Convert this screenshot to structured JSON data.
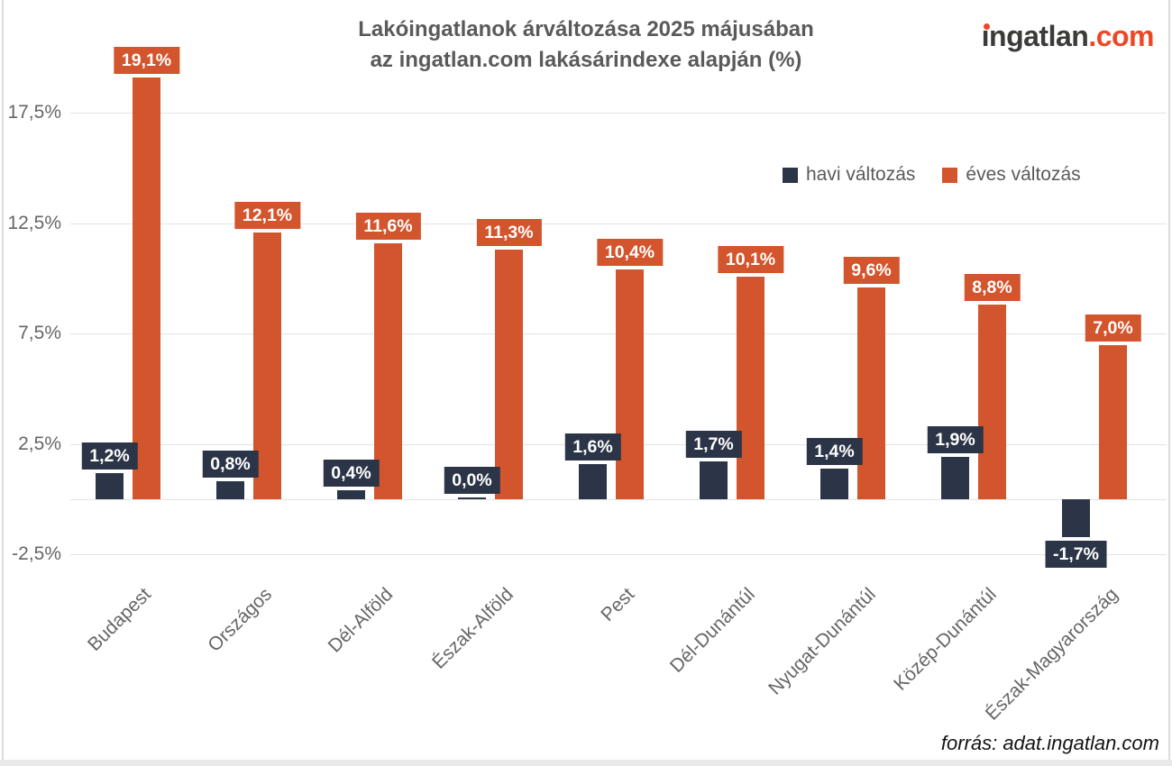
{
  "title": {
    "line1": "Lakóingatlanok árváltozása 2025 májusában",
    "line2": "az ingatlan.com lakásárindexe alapján (%)"
  },
  "logo": {
    "word": "ingatlan",
    "tld": ".com"
  },
  "legend": [
    {
      "label": "havi változás",
      "color": "#2c3547"
    },
    {
      "label": "éves változás",
      "color": "#d2552d"
    }
  ],
  "source": "forrás: adat.ingatlan.com",
  "colors": {
    "monthly": "#2c3547",
    "yearly": "#d2552d",
    "grid": "#e3e3e3",
    "axis_text": "#666666",
    "title_text": "#5a5a5a",
    "logo_dark": "#3b3b3a",
    "logo_orange": "#ee4726"
  },
  "chart_data": {
    "type": "bar",
    "title": "Lakóingatlanok árváltozása 2025 májusában az ingatlan.com lakásárindexe alapján (%)",
    "categories": [
      "Budapest",
      "Országos",
      "Dél-Alföld",
      "Észak-Alföld",
      "Pest",
      "Dél-Dunántúl",
      "Nyugat-Dunántúl",
      "Közép-Dunántúl",
      "Észak-Magyarország"
    ],
    "series": [
      {
        "name": "havi változás",
        "color": "#2c3547",
        "values": [
          1.2,
          0.8,
          0.4,
          0.0,
          1.6,
          1.7,
          1.4,
          1.9,
          -1.7
        ],
        "labels": [
          "1,2%",
          "0,8%",
          "0,4%",
          "0,0%",
          "1,6%",
          "1,7%",
          "1,4%",
          "1,9%",
          "-1,7%"
        ]
      },
      {
        "name": "éves változás",
        "color": "#d2552d",
        "values": [
          19.1,
          12.1,
          11.6,
          11.3,
          10.4,
          10.1,
          9.6,
          8.8,
          7.0
        ],
        "labels": [
          "19,1%",
          "12,1%",
          "11,6%",
          "11,3%",
          "10,4%",
          "10,1%",
          "9,6%",
          "8,8%",
          "7,0%"
        ]
      }
    ],
    "dotted_categories": [
      "Országos"
    ],
    "yticks": [
      {
        "value": 17.5,
        "label": "17,5%"
      },
      {
        "value": 12.5,
        "label": "12,5%"
      },
      {
        "value": 7.5,
        "label": "7,5%"
      },
      {
        "value": 2.5,
        "label": "2,5%"
      },
      {
        "value": -2.5,
        "label": "-2,5%"
      }
    ],
    "ylim": [
      -3.5,
      20.5
    ],
    "grid": true,
    "legend_position": "top-right",
    "value_labels": true
  }
}
